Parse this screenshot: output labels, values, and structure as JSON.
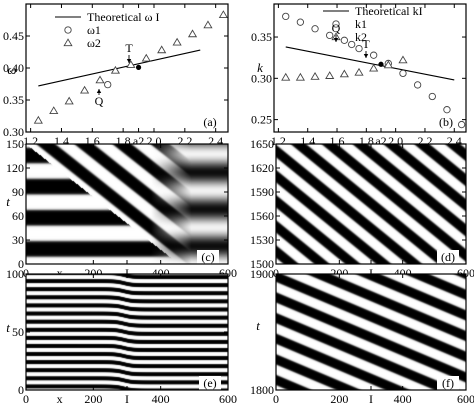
{
  "chart_data": [
    {
      "panel": "(a)",
      "type": "scatter",
      "ylabel": "ω",
      "xlim": [
        1.17,
        2.48
      ],
      "ylim": [
        0.3,
        0.5
      ],
      "x_ticks": [
        "1.2",
        "1.4",
        "1.6",
        "1.8",
        "a2",
        "2.0",
        "2.2",
        "2.4"
      ],
      "x_tick_values": [
        1.2,
        1.4,
        1.6,
        1.8,
        1.9,
        2.0,
        2.2,
        2.4
      ],
      "y_ticks": [
        "0.30",
        "0.35",
        "0.40",
        "0.45"
      ],
      "y_tick_values": [
        0.3,
        0.35,
        0.4,
        0.45
      ],
      "legend": [
        {
          "label": "Theoretical ω I",
          "marker": "line"
        },
        {
          "label": "ω1",
          "marker": "circle"
        },
        {
          "label": "ω2",
          "marker": "triangle"
        }
      ],
      "legend_position": "top-left",
      "theory_line": {
        "x": [
          1.25,
          2.3
        ],
        "y": [
          0.372,
          0.428
        ]
      },
      "series": [
        {
          "marker": "circle",
          "x": [
            1.7
          ],
          "y": [
            0.374
          ]
        },
        {
          "marker": "triangle",
          "x": [
            1.25,
            1.35,
            1.45,
            1.55,
            1.65,
            1.75,
            1.85,
            1.95,
            2.05,
            2.15,
            2.25,
            2.35,
            2.45
          ],
          "y": [
            0.318,
            0.333,
            0.348,
            0.365,
            0.381,
            0.396,
            0.405,
            0.415,
            0.428,
            0.44,
            0.453,
            0.467,
            0.483
          ]
        }
      ],
      "point_T": {
        "x": 1.9,
        "y": 0.401
      },
      "annotations": [
        "T",
        "Q",
        "(a)"
      ]
    },
    {
      "panel": "(b)",
      "type": "scatter",
      "ylabel": "k",
      "xlim": [
        1.17,
        2.48
      ],
      "ylim": [
        0.235,
        0.39
      ],
      "x_ticks": [
        "1.2",
        "1.4",
        "1.6",
        "1.8",
        "a2",
        "2.0",
        "2.2",
        "2.4"
      ],
      "x_tick_values": [
        1.2,
        1.4,
        1.6,
        1.8,
        1.9,
        2.0,
        2.2,
        2.4
      ],
      "y_ticks": [
        "0.25",
        "0.30",
        "0.35"
      ],
      "y_tick_values": [
        0.25,
        0.3,
        0.35
      ],
      "legend": [
        {
          "label": "Theoretical kI",
          "marker": "line"
        },
        {
          "label": "k1",
          "marker": "circle"
        },
        {
          "label": "k2",
          "marker": "triangle"
        }
      ],
      "legend_position": "top-right",
      "theory_line": {
        "x": [
          1.25,
          2.4
        ],
        "y": [
          0.338,
          0.298
        ]
      },
      "series": [
        {
          "marker": "circle",
          "x": [
            1.25,
            1.35,
            1.45,
            1.55,
            1.65,
            1.7,
            1.75,
            1.85,
            1.95,
            2.05,
            2.15,
            2.25,
            2.35,
            2.45
          ],
          "y": [
            0.375,
            0.368,
            0.36,
            0.352,
            0.346,
            0.341,
            0.336,
            0.328,
            0.318,
            0.306,
            0.292,
            0.278,
            0.262,
            0.244
          ]
        },
        {
          "marker": "triangle",
          "x": [
            1.25,
            1.35,
            1.45,
            1.55,
            1.65,
            1.75,
            1.85,
            1.95,
            2.05
          ],
          "y": [
            0.301,
            0.301,
            0.302,
            0.303,
            0.305,
            0.307,
            0.312,
            0.316,
            0.322
          ]
        }
      ],
      "point_T": {
        "x": 1.9,
        "y": 0.317
      },
      "annotations": [
        "Q",
        "T",
        "(b)"
      ]
    },
    {
      "panel": "(c)",
      "type": "heatmap",
      "ylabel": "t",
      "xlabel": "x",
      "xlim": [
        0,
        600
      ],
      "ylim": [
        0,
        150
      ],
      "x_ticks": [
        "0",
        "200",
        "Ι",
        "400",
        "600"
      ],
      "x_tick_values": [
        0,
        200,
        300,
        400,
        600
      ],
      "y_ticks": [
        "0",
        "30",
        "60",
        "90",
        "120",
        "150"
      ],
      "y_tick_values": [
        0,
        30,
        60,
        90,
        120,
        150
      ]
    },
    {
      "panel": "(d)",
      "type": "heatmap",
      "xlim": [
        0,
        600
      ],
      "ylim": [
        1500,
        1650
      ],
      "x_ticks": [
        "0",
        "200",
        "Ι",
        "400",
        "600"
      ],
      "x_tick_values": [
        0,
        200,
        300,
        400,
        600
      ],
      "y_ticks": [
        "1500",
        "1530",
        "1560",
        "1590",
        "1620",
        "1650"
      ],
      "y_tick_values": [
        1500,
        1530,
        1560,
        1590,
        1620,
        1650
      ]
    },
    {
      "panel": "(e)",
      "type": "heatmap",
      "ylabel": "t",
      "xlabel": "x",
      "xlim": [
        0,
        600
      ],
      "ylim": [
        0,
        100
      ],
      "x_ticks": [
        "0",
        "200",
        "Ι",
        "400",
        "600"
      ],
      "x_tick_values": [
        0,
        200,
        300,
        400,
        600
      ],
      "y_ticks": [
        "0",
        "50",
        "100"
      ],
      "y_tick_values": [
        0,
        50,
        100
      ]
    },
    {
      "panel": "(f)",
      "type": "heatmap",
      "ylabel": "t",
      "xlim": [
        0,
        600
      ],
      "ylim": [
        1800,
        1900
      ],
      "x_ticks": [
        "0",
        "200",
        "Ι",
        "400",
        "600"
      ],
      "x_tick_values": [
        0,
        200,
        300,
        400,
        600
      ],
      "y_ticks": [
        "1800",
        "1900"
      ],
      "y_tick_values": [
        1800,
        1900
      ]
    }
  ]
}
